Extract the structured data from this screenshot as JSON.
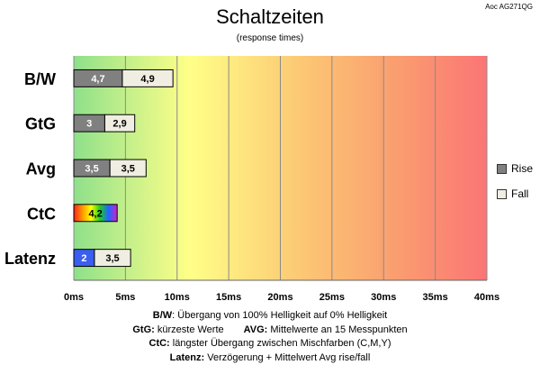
{
  "title": "Schaltzeiten",
  "subtitle": "(response times)",
  "model": "Aoc AG271QG",
  "colors": {
    "rise": "#808080",
    "fall": "#f0eee2",
    "latenz": "#3a5ef0",
    "outline": "#000000"
  },
  "chart_data": {
    "type": "bar",
    "orientation": "horizontal",
    "stacked": true,
    "categories": [
      "B/W",
      "GtG",
      "Avg",
      "CtC",
      "Latenz"
    ],
    "series": [
      {
        "name": "Rise",
        "values": [
          4.7,
          3,
          3.5,
          4.2,
          2
        ],
        "labels": [
          "4,7",
          "3",
          "3,5",
          "4,2",
          "2"
        ]
      },
      {
        "name": "Fall",
        "values": [
          4.9,
          2.9,
          3.5,
          null,
          3.5
        ],
        "labels": [
          "4,9",
          "2,9",
          "3,5",
          "",
          "3,5"
        ]
      }
    ],
    "x_ticks": [
      "0ms",
      "5ms",
      "10ms",
      "15ms",
      "20ms",
      "25ms",
      "30ms",
      "35ms",
      "40ms"
    ],
    "xlim": [
      0,
      40
    ],
    "grid": true,
    "legend_position": "right",
    "background": "gradient green-yellow-red"
  },
  "legend": {
    "rise": "Rise",
    "fall": "Fall"
  },
  "notes": {
    "bw_key": "B/W",
    "bw_text": ":  Übergang von 100% Helligkeit auf 0% Helligkeit",
    "gtg_key": "GtG:",
    "gtg_text": " kürzeste  Werte",
    "avg_key": "AVG:",
    "avg_text": " Mittelwerte  an 15 Messpunkten",
    "ctc_key": "CtC:",
    "ctc_text": " längster Übergang  zwischen Mischfarben  (C,M,Y)",
    "latenz_key": "Latenz:",
    "latenz_text": " Verzögerung  + Mittelwert  Avg rise/fall"
  }
}
